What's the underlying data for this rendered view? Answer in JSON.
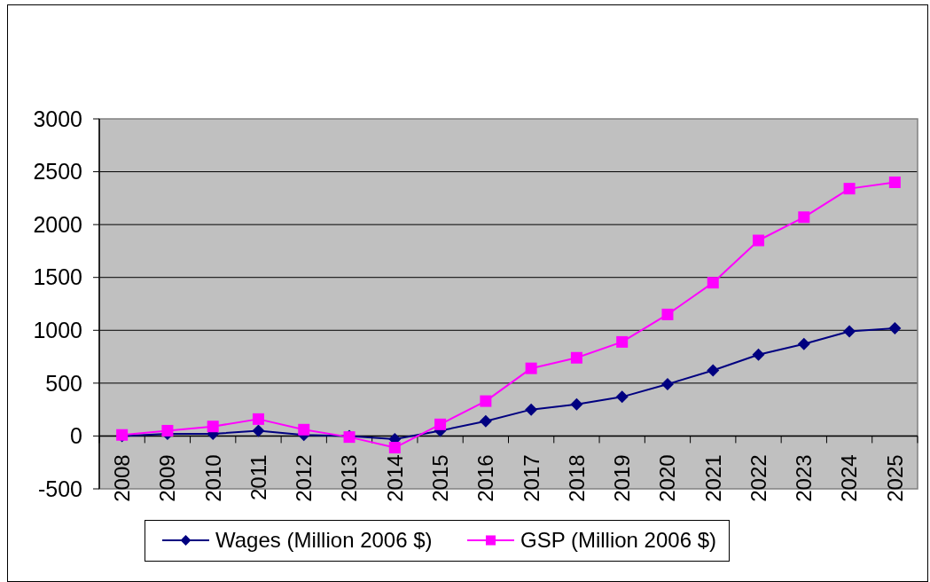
{
  "chart_data": {
    "type": "line",
    "categories": [
      "2008",
      "2009",
      "2010",
      "2011",
      "2012",
      "2013",
      "2014",
      "2015",
      "2016",
      "2017",
      "2018",
      "2019",
      "2020",
      "2021",
      "2022",
      "2023",
      "2024",
      "2025"
    ],
    "series": [
      {
        "name": "Wages (Million 2006 $)",
        "color": "#000080",
        "marker": "diamond",
        "values": [
          0,
          20,
          20,
          50,
          10,
          0,
          -30,
          50,
          140,
          250,
          300,
          370,
          490,
          620,
          770,
          870,
          990,
          1020
        ]
      },
      {
        "name": "GSP (Million 2006 $)",
        "color": "#ff00ff",
        "marker": "square",
        "values": [
          10,
          50,
          90,
          160,
          60,
          -10,
          -110,
          110,
          330,
          640,
          740,
          890,
          1150,
          1450,
          1850,
          2070,
          2340,
          2400
        ]
      }
    ],
    "ylim": [
      -500,
      3000
    ],
    "yticks": [
      -500,
      0,
      500,
      1000,
      1500,
      2000,
      2500,
      3000
    ],
    "grid": "y",
    "legend": "bottom"
  }
}
